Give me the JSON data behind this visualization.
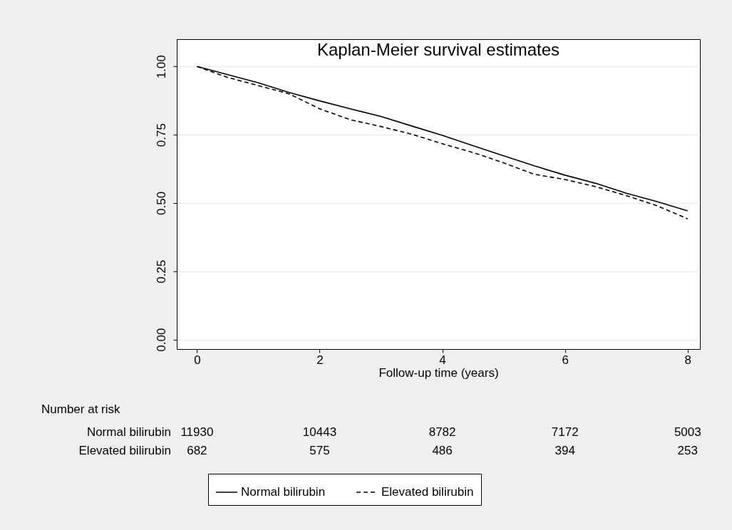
{
  "chart_data": {
    "type": "line",
    "title": "Kaplan-Meier survival estimates",
    "xlabel": "Follow-up time (years)",
    "x": [
      0,
      0.5,
      1,
      1.5,
      2,
      2.5,
      3,
      3.5,
      4,
      4.5,
      5,
      5.5,
      6,
      6.5,
      7,
      7.5,
      8
    ],
    "series": [
      {
        "name": "Normal bilirubin",
        "color": "#000000",
        "line_style": "solid",
        "values": [
          1.0,
          0.97,
          0.94,
          0.905,
          0.874,
          0.845,
          0.817,
          0.782,
          0.748,
          0.71,
          0.673,
          0.636,
          0.602,
          0.572,
          0.536,
          0.505,
          0.471
        ]
      },
      {
        "name": "Elevated bilirubin",
        "color": "#000000",
        "line_style": "dashed",
        "values": [
          1.0,
          0.96,
          0.93,
          0.9,
          0.845,
          0.805,
          0.78,
          0.752,
          0.717,
          0.685,
          0.647,
          0.605,
          0.586,
          0.56,
          0.527,
          0.49,
          0.442
        ]
      }
    ],
    "xlim": [
      -0.33,
      8.2
    ],
    "ylim": [
      -0.035,
      1.1
    ],
    "xticks": [
      0,
      2,
      4,
      6,
      8
    ],
    "yticks": [
      {
        "value": 0,
        "label": "0.00"
      },
      {
        "value": 0.25,
        "label": "0.25"
      },
      {
        "value": 0.5,
        "label": "0.50"
      },
      {
        "value": 0.75,
        "label": "0.75"
      },
      {
        "value": 1,
        "label": "1.00"
      }
    ],
    "grid": "y",
    "legend": "bottom",
    "annotations": [
      "Number at risk",
      "Normal bilirubin",
      "11930",
      "10443",
      "8782",
      "7172",
      "5003",
      "Elevated bilirubin",
      "682",
      "575",
      "486",
      "394",
      "253"
    ]
  }
}
